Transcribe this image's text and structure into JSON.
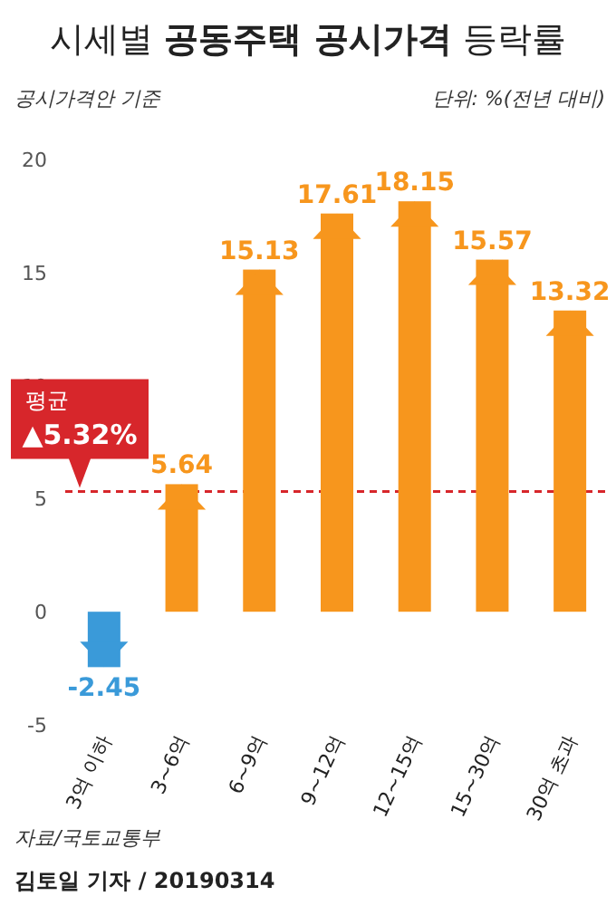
{
  "chart_data": {
    "type": "bar",
    "title": "시세별 **공동주택 공시가격** 등락률",
    "subtitle": "공시가격안 기준",
    "categories": [
      "3억 이하",
      "3~6억",
      "6~9억",
      "9~12억",
      "12~15억",
      "15~30억",
      "30억 초과"
    ],
    "values": [
      -2.45,
      5.64,
      15.13,
      17.61,
      18.15,
      15.57,
      13.32
    ],
    "colors": [
      "#3a9ad9",
      "#f7961d",
      "#f7961d",
      "#f7961d",
      "#f7961d",
      "#f7961d",
      "#f7961d"
    ],
    "data_labels": true,
    "ylim": [
      -5,
      20
    ],
    "yticks": [
      -5,
      0,
      5,
      10,
      15,
      20
    ],
    "grid": false,
    "ref_lines": [
      {
        "axis": "y",
        "value": 5.32,
        "label": "평균 ▲5.32%",
        "color": "#d7262b",
        "line_style": "dashed"
      }
    ],
    "annotations": [
      "단위: %(전년 대비)",
      "자료/국토교통부",
      "김토일 기자 / 20190314"
    ]
  }
}
